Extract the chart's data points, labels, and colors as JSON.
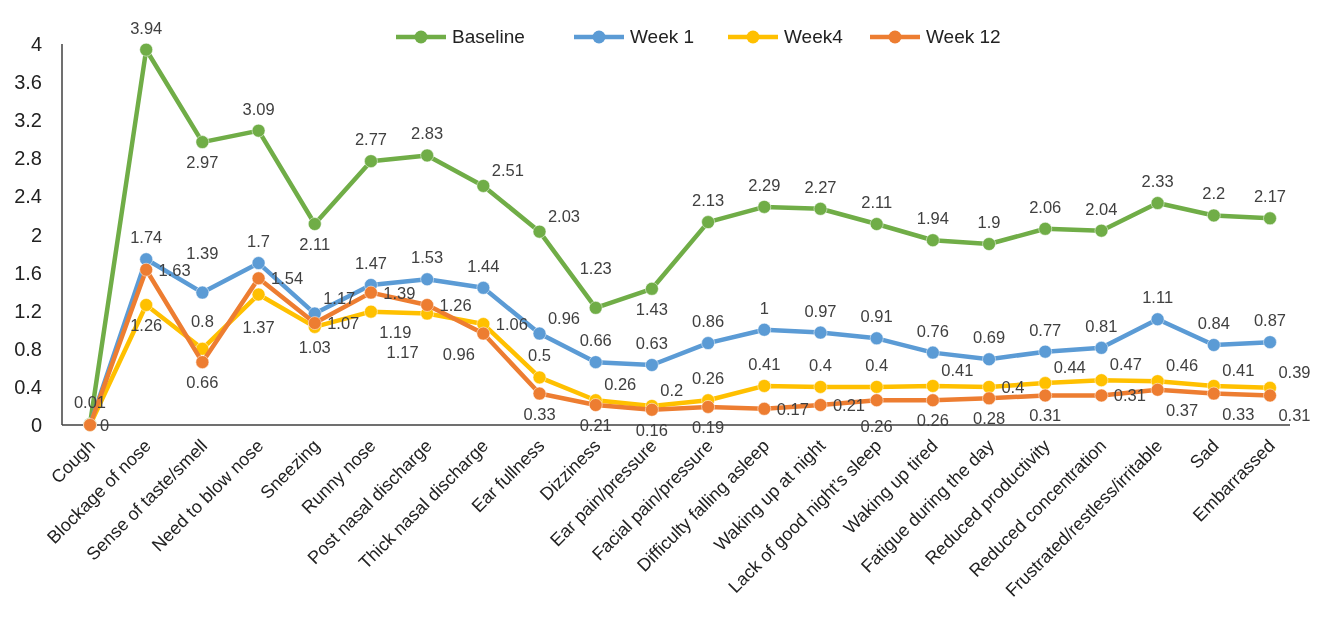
{
  "chart_data": {
    "type": "line",
    "categories": [
      "Cough",
      "Blockage of nose",
      "Sense of taste/smell",
      "Need to blow nose",
      "Sneezing",
      "Runny nose",
      "Post nasal discharge",
      "Thick nasal discharge",
      "Ear fullness",
      "Dizziness",
      "Ear pain/pressure",
      "Facial pain/pressure",
      "Difficulty falling asleep",
      "Waking up at night",
      "Lack of good night’s sleep",
      "Waking up tired",
      "Fatigue during the day",
      "Reduced productivity",
      "Reduced concentration",
      "Frustrated/restless/irritable",
      "Sad",
      "Embarrassed"
    ],
    "series": [
      {
        "name": "Baseline",
        "color": "#70ad47",
        "values": [
          0.01,
          3.94,
          2.97,
          3.09,
          2.11,
          2.77,
          2.83,
          2.51,
          2.03,
          1.23,
          1.43,
          2.13,
          2.29,
          2.27,
          2.11,
          1.94,
          1.9,
          2.06,
          2.04,
          2.33,
          2.2,
          2.17
        ],
        "value_labels": [
          "0.01",
          "3.94",
          "2.97",
          "3.09",
          "2.11",
          "2.77",
          "2.83",
          "2.51",
          "2.03",
          "1.23",
          "1.43",
          "2.13",
          "2.29",
          "2.27",
          "2.11",
          "1.94",
          "1.9",
          "2.06",
          "2.04",
          "2.33",
          "2.2",
          "2.17"
        ]
      },
      {
        "name": "Week 1",
        "color": "#5b9bd5",
        "values": [
          0,
          1.74,
          1.39,
          1.7,
          1.17,
          1.47,
          1.53,
          1.44,
          0.96,
          0.66,
          0.63,
          0.86,
          1,
          0.97,
          0.91,
          0.76,
          0.69,
          0.77,
          0.81,
          1.11,
          0.84,
          0.87
        ],
        "value_labels": [
          "0",
          "1.74",
          "1.39",
          "1.7",
          "1.17",
          "1.47",
          "1.53",
          "1.44",
          "0.96",
          "0.66",
          "0.63",
          "0.86",
          "1",
          "0.97",
          "0.91",
          "0.76",
          "0.69",
          "0.77",
          "0.81",
          "1.11",
          "0.84",
          "0.87"
        ]
      },
      {
        "name": "Week4",
        "color": "#ffc000",
        "values": [
          0,
          1.26,
          0.8,
          1.37,
          1.03,
          1.19,
          1.17,
          1.06,
          0.5,
          0.26,
          0.2,
          0.26,
          0.41,
          0.4,
          0.4,
          0.41,
          0.4,
          0.44,
          0.47,
          0.46,
          0.41,
          0.39
        ],
        "value_labels": [
          null,
          "1.26",
          "0.8",
          "1.37",
          "1.03",
          "1.19",
          "1.17",
          "1.06",
          "0.5",
          "0.26",
          "0.2",
          "0.26",
          "0.41",
          "0.4",
          "0.4",
          "0.41",
          "0.4",
          "0.44",
          "0.47",
          "0.46",
          "0.41",
          "0.39"
        ]
      },
      {
        "name": "Week 12",
        "color": "#ed7d31",
        "values": [
          0,
          1.63,
          0.66,
          1.54,
          1.07,
          1.39,
          1.26,
          0.96,
          0.33,
          0.21,
          0.16,
          0.19,
          0.17,
          0.21,
          0.26,
          0.26,
          0.28,
          0.31,
          0.31,
          0.37,
          0.33,
          0.31
        ],
        "value_labels": [
          null,
          "1.63",
          "0.66",
          "1.54",
          "1.07",
          "1.39",
          "1.26",
          "0.96",
          "0.33",
          "0.21",
          "0.16",
          "0.19",
          "0.17",
          "0.21",
          "0.26",
          "0.26",
          "0.28",
          "0.31",
          "0.31",
          "0.37",
          "0.33",
          "0.31"
        ]
      }
    ],
    "ylim": [
      0,
      4
    ],
    "yticks": [
      0,
      0.4,
      0.8,
      1.2,
      1.6,
      2,
      2.4,
      2.8,
      3.2,
      3.6,
      4
    ],
    "grid": false,
    "legend": "top",
    "marker": "circle",
    "line_style": "solid"
  }
}
